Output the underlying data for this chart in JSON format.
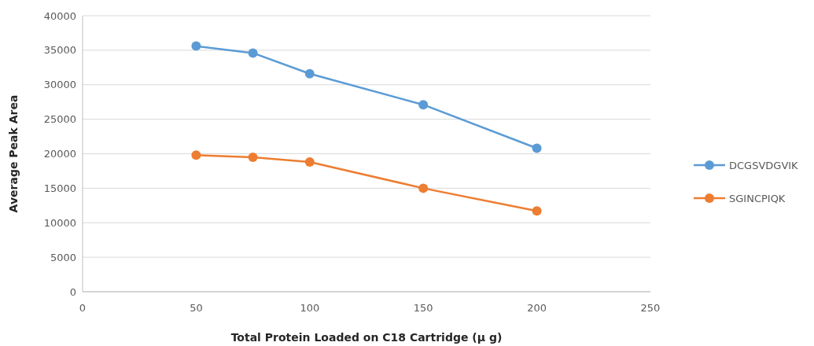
{
  "chart_data": {
    "type": "line",
    "xlabel": "Total Protein Loaded on C18 Cartridge (µ g)",
    "ylabel": "Average Peak Area",
    "x": [
      50,
      75,
      100,
      150,
      200
    ],
    "series": [
      {
        "name": "DCGSVDGVIK",
        "color": "#5b9bd5",
        "values": [
          35600,
          34600,
          31600,
          27100,
          20800
        ]
      },
      {
        "name": "SGINCPIQK",
        "color": "#ed7d31",
        "values": [
          19800,
          19500,
          18800,
          15000,
          11700
        ]
      }
    ],
    "xlim": [
      0,
      250
    ],
    "xticks": [
      0,
      50,
      100,
      150,
      200,
      250
    ],
    "ylim": [
      0,
      40000
    ],
    "yticks": [
      0,
      5000,
      10000,
      15000,
      20000,
      25000,
      30000,
      35000,
      40000
    ],
    "grid": "y",
    "legend": "right",
    "marker": "circle",
    "line_style": "solid"
  }
}
